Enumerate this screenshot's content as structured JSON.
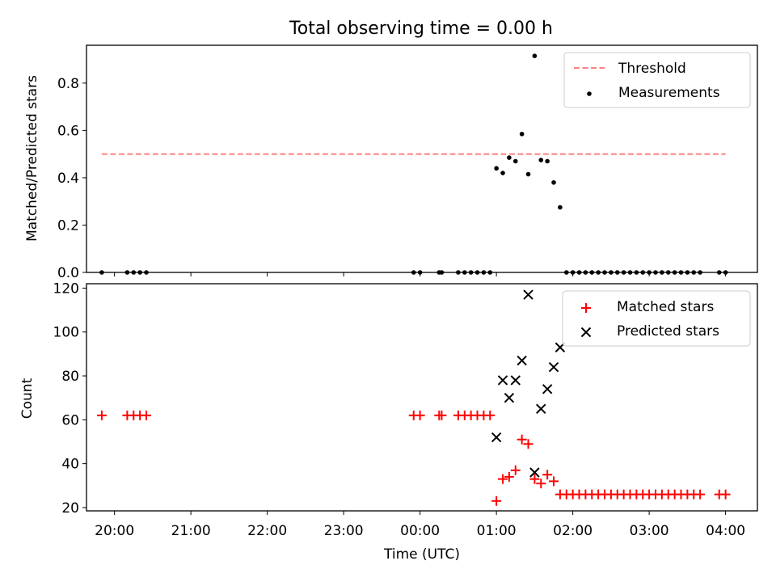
{
  "figure": {
    "title": "Total observing time = 0.00 h"
  },
  "chart_data": [
    {
      "type": "scatter",
      "ylabel": "Matched/Predicted stars",
      "xlim": [
        "19:38",
        "04:25"
      ],
      "ylim": [
        0,
        0.96
      ],
      "yticks": [
        0.0,
        0.2,
        0.4,
        0.6,
        0.8
      ],
      "ytick_labels": [
        "0.0",
        "0.2",
        "0.4",
        "0.6",
        "0.8"
      ],
      "grid": false,
      "legend_position": "top-right",
      "series": [
        {
          "name": "Threshold",
          "kind": "dashed-line",
          "color": "#ff7f7f",
          "x": [
            "19:50",
            "04:00"
          ],
          "y": [
            0.5,
            0.5
          ]
        },
        {
          "name": "Measurements",
          "kind": "points",
          "color": "#000000",
          "x": [
            "19:50",
            "20:10",
            "20:15",
            "20:20",
            "20:25",
            "23:55",
            "00:00",
            "00:15",
            "00:17",
            "00:30",
            "00:35",
            "00:40",
            "00:45",
            "00:50",
            "00:55",
            "01:00",
            "01:05",
            "01:10",
            "01:15",
            "01:20",
            "01:25",
            "01:30",
            "01:35",
            "01:40",
            "01:45",
            "01:50",
            "01:55",
            "02:00",
            "02:05",
            "02:10",
            "02:15",
            "02:20",
            "02:25",
            "02:30",
            "02:35",
            "02:40",
            "02:45",
            "02:50",
            "02:55",
            "03:00",
            "03:05",
            "03:10",
            "03:15",
            "03:20",
            "03:25",
            "03:30",
            "03:35",
            "03:40",
            "03:55",
            "04:00"
          ],
          "y": [
            0,
            0,
            0,
            0,
            0,
            0,
            0,
            0,
            0,
            0,
            0,
            0,
            0,
            0,
            0,
            0.44,
            0.42,
            0.485,
            0.47,
            0.585,
            0.415,
            0.915,
            0.475,
            0.47,
            0.38,
            0.275,
            0,
            0,
            0,
            0,
            0,
            0,
            0,
            0,
            0,
            0,
            0,
            0,
            0,
            0,
            0,
            0,
            0,
            0,
            0,
            0,
            0,
            0,
            0,
            0
          ]
        }
      ]
    },
    {
      "type": "scatter",
      "xlabel": "Time (UTC)",
      "ylabel": "Count",
      "xlim": [
        "19:38",
        "04:25"
      ],
      "ylim": [
        18.5,
        122
      ],
      "xticks": [
        "20:00",
        "21:00",
        "22:00",
        "23:00",
        "00:00",
        "01:00",
        "02:00",
        "03:00",
        "04:00"
      ],
      "yticks": [
        20,
        40,
        60,
        80,
        100,
        120
      ],
      "ytick_labels": [
        "20",
        "40",
        "60",
        "80",
        "100",
        "120"
      ],
      "grid": false,
      "legend_position": "top-right",
      "series": [
        {
          "name": "Matched stars",
          "marker": "plus",
          "color": "#ff0000",
          "x": [
            "19:50",
            "20:10",
            "20:15",
            "20:20",
            "20:25",
            "23:55",
            "00:00",
            "00:15",
            "00:17",
            "00:30",
            "00:35",
            "00:40",
            "00:45",
            "00:50",
            "00:55",
            "01:00",
            "01:05",
            "01:10",
            "01:15",
            "01:20",
            "01:25",
            "01:30",
            "01:35",
            "01:40",
            "01:45",
            "01:50",
            "01:55",
            "02:00",
            "02:05",
            "02:10",
            "02:15",
            "02:20",
            "02:25",
            "02:30",
            "02:35",
            "02:40",
            "02:45",
            "02:50",
            "02:55",
            "03:00",
            "03:05",
            "03:10",
            "03:15",
            "03:20",
            "03:25",
            "03:30",
            "03:35",
            "03:40",
            "03:55",
            "04:00"
          ],
          "y": [
            62,
            62,
            62,
            62,
            62,
            62,
            62,
            62,
            62,
            62,
            62,
            62,
            62,
            62,
            62,
            23,
            33,
            34,
            37,
            51,
            49,
            33,
            31,
            35,
            32,
            26,
            26,
            26,
            26,
            26,
            26,
            26,
            26,
            26,
            26,
            26,
            26,
            26,
            26,
            26,
            26,
            26,
            26,
            26,
            26,
            26,
            26,
            26,
            26,
            26
          ]
        },
        {
          "name": "Predicted stars",
          "marker": "x",
          "color": "#000000",
          "x": [
            "01:00",
            "01:05",
            "01:10",
            "01:15",
            "01:20",
            "01:25",
            "01:30",
            "01:35",
            "01:40",
            "01:45",
            "01:50"
          ],
          "y": [
            52,
            78,
            70,
            78,
            87,
            117,
            36,
            65,
            74,
            84,
            93
          ]
        }
      ]
    }
  ]
}
